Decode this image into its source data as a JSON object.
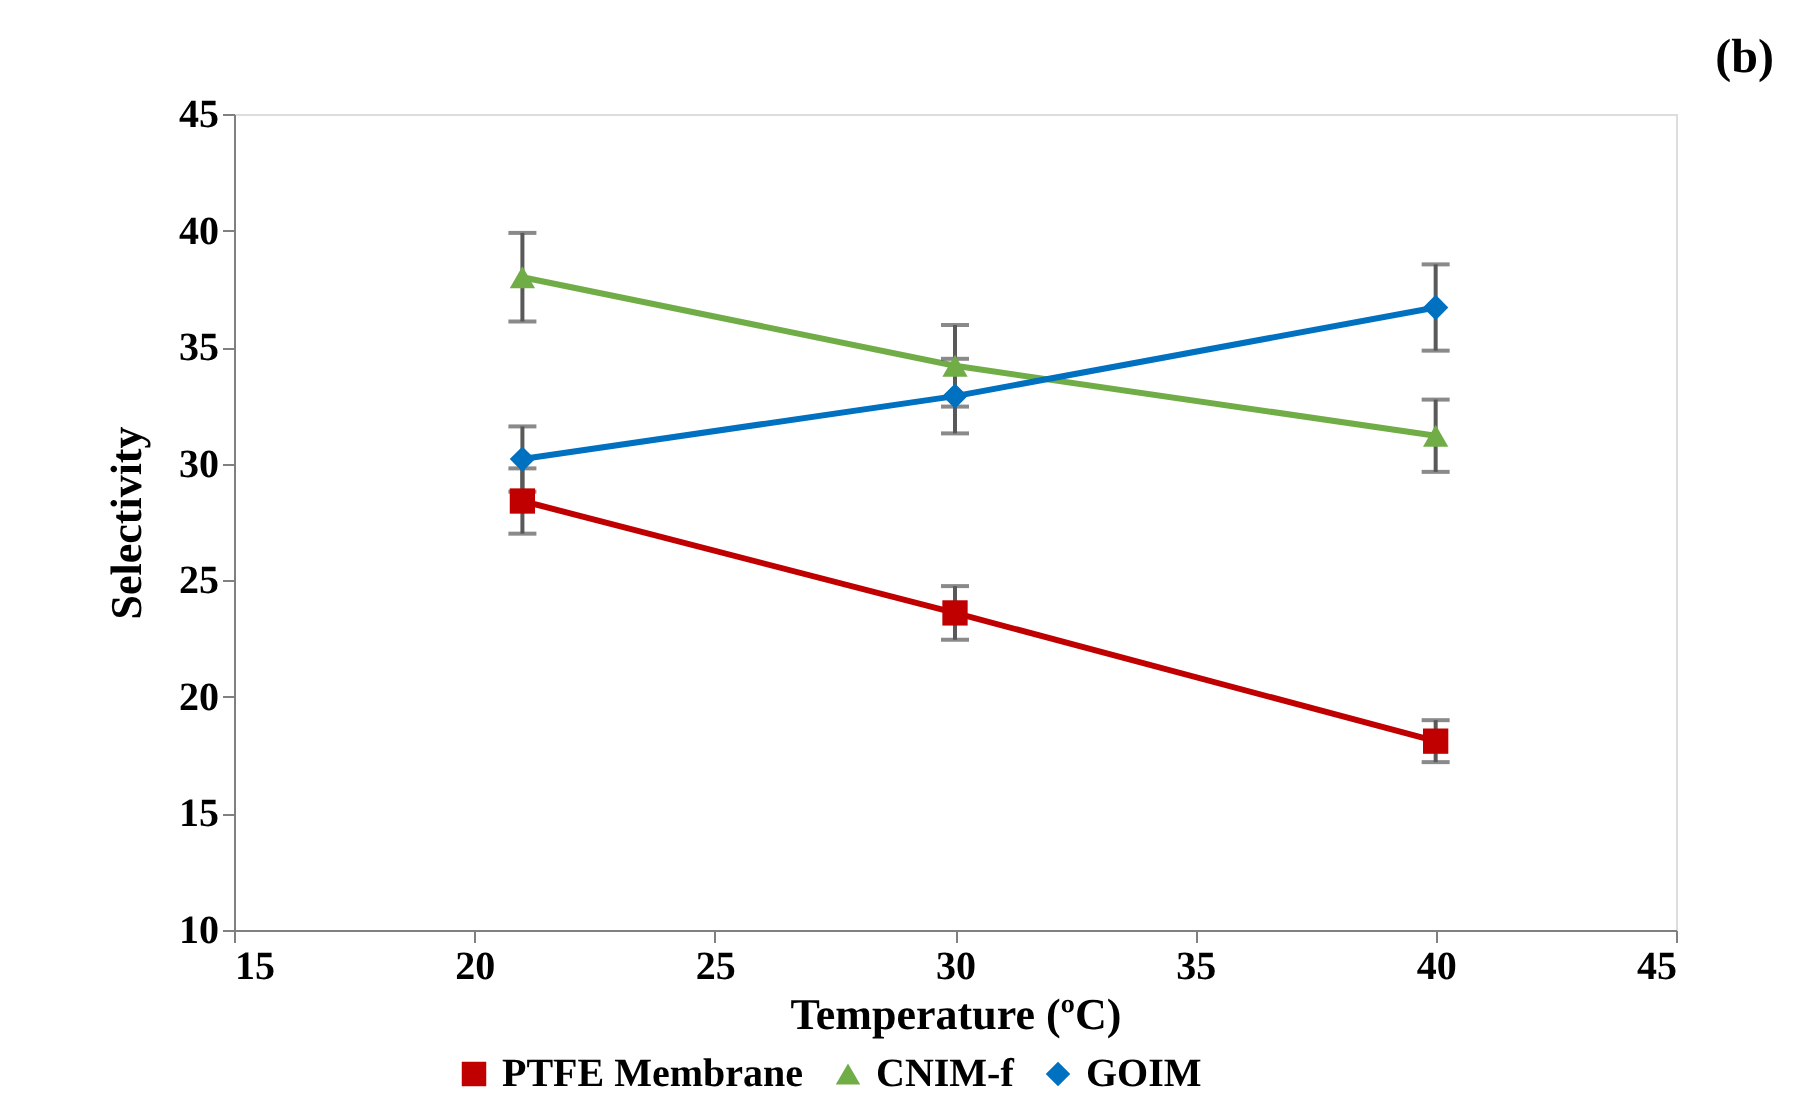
{
  "chart_data": {
    "type": "line",
    "xlabel": "Temperature (ºC)",
    "ylabel": "Selectivity",
    "annotations": [
      "(b)"
    ],
    "x": [
      21,
      30,
      40
    ],
    "series": [
      {
        "name": "PTFE Membrane",
        "color": "#c00000",
        "marker": "square",
        "values": [
          28.4,
          23.6,
          18.1
        ],
        "errors": [
          1.4,
          1.15,
          0.9
        ]
      },
      {
        "name": "CNIM-f",
        "color": "#70ad47",
        "marker": "triangle",
        "values": [
          38.0,
          34.2,
          31.2
        ],
        "errors": [
          1.9,
          1.75,
          1.55
        ]
      },
      {
        "name": "GOIM",
        "color": "#0070c0",
        "marker": "diamond",
        "values": [
          30.2,
          32.9,
          36.7
        ],
        "errors": [
          1.4,
          1.6,
          1.85
        ]
      }
    ],
    "xlim": [
      15,
      45
    ],
    "xticks": [
      15,
      20,
      25,
      30,
      35,
      40,
      45
    ],
    "ylim": [
      10,
      45
    ],
    "yticks": [
      10,
      15,
      20,
      25,
      30,
      35,
      40,
      45
    ],
    "grid": false,
    "legend": "bottom",
    "line_style": "solid"
  }
}
